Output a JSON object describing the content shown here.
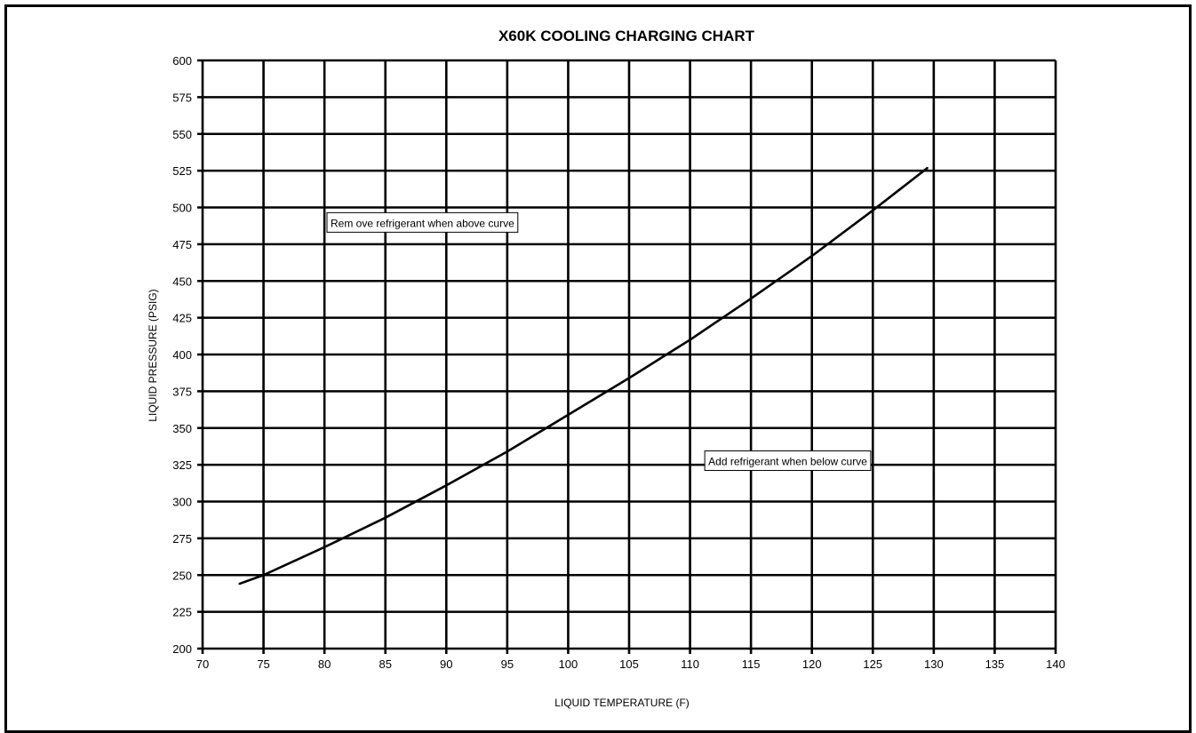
{
  "chart_data": {
    "type": "line",
    "title": "X60K COOLING CHARGING CHART",
    "xlabel": "LIQUID TEMPERATURE  (F)",
    "ylabel": "LIQUID PRESSURE  (PSIG)",
    "xlim": [
      70,
      140
    ],
    "ylim": [
      200,
      600
    ],
    "xticks": [
      "70",
      "75",
      "80",
      "85",
      "90",
      "95",
      "100",
      "105",
      "110",
      "115",
      "120",
      "125",
      "130",
      "135",
      "140"
    ],
    "yticks": [
      "200",
      "225",
      "250",
      "275",
      "300",
      "325",
      "350",
      "375",
      "400",
      "425",
      "450",
      "475",
      "500",
      "525",
      "550",
      "575",
      "600"
    ],
    "grid": true,
    "legend": "none",
    "series": [
      {
        "x": [
          73,
          75,
          80,
          85,
          90,
          95,
          100,
          105,
          110,
          115,
          120,
          125,
          129.5
        ],
        "y": [
          244,
          250,
          269,
          289,
          311,
          334,
          359,
          384,
          410,
          438,
          467,
          498,
          527
        ]
      }
    ],
    "annotations": [
      {
        "text": "Rem ove refrigerant  when above  curve",
        "x": 80.5,
        "y": 488
      },
      {
        "text": "Add refrigerant  when below curve",
        "x": 111.5,
        "y": 326
      }
    ],
    "colors": {
      "line": "#000000",
      "grid": "#000000",
      "background": "#ffffff"
    }
  }
}
